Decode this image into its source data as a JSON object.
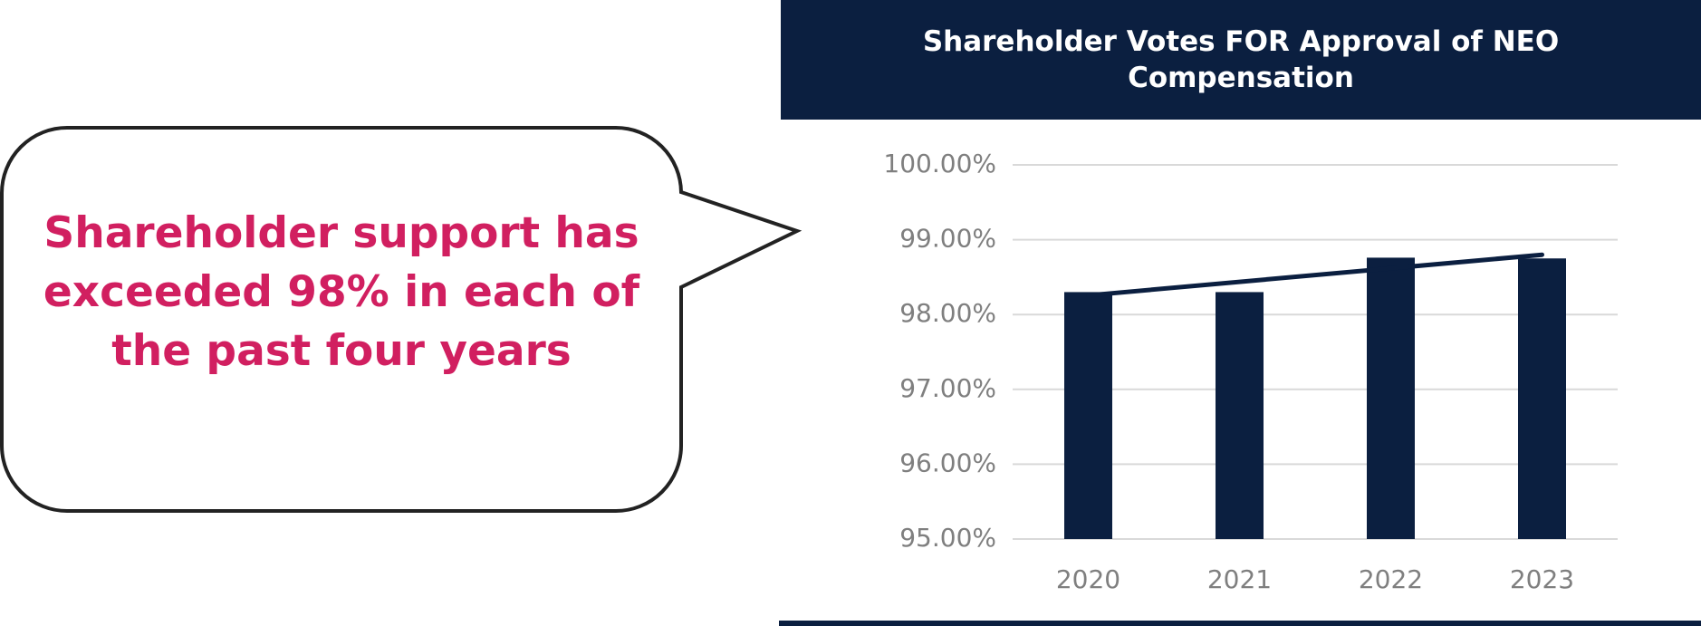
{
  "callout": "Shareholder support has exceeded 98% in each of the past four years",
  "chart_data": {
    "type": "bar",
    "title": "Shareholder Votes FOR Approval of NEO Compensation",
    "categories": [
      "2020",
      "2021",
      "2022",
      "2023"
    ],
    "values": [
      98.3,
      98.3,
      98.76,
      98.75
    ],
    "color": "#0b1f40",
    "trendline": true,
    "ylim": [
      95,
      100
    ],
    "yticks": [
      {
        "value": 95,
        "label": "95.00%"
      },
      {
        "value": 96,
        "label": "96.00%"
      },
      {
        "value": 97,
        "label": "97.00%"
      },
      {
        "value": 98,
        "label": "98.00%"
      },
      {
        "value": 99,
        "label": "99.00%"
      },
      {
        "value": 100,
        "label": "100.00%"
      }
    ],
    "grid": true
  }
}
